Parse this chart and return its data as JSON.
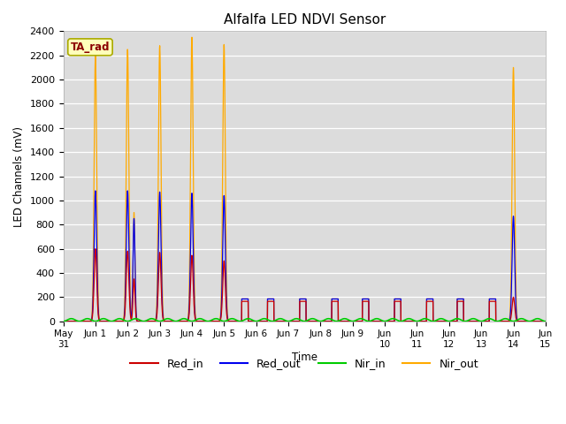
{
  "title": "Alfalfa LED NDVI Sensor",
  "ylabel": "LED Channels (mV)",
  "xlabel": "Time",
  "annotation": "TA_rad",
  "ylim": [
    0,
    2400
  ],
  "xlim": [
    0,
    15
  ],
  "background_color": "#dcdcdc",
  "colors": {
    "Red_in": "#cc0000",
    "Red_out": "#0000ee",
    "Nir_in": "#00cc00",
    "Nir_out": "#ffaa00"
  },
  "xtick_labels": [
    "May\n31",
    "Jun 1",
    "Jun 2",
    "Jun 3",
    "Jun 4",
    "Jun 5",
    "Jun 6",
    "Jun 7",
    "Jun 8",
    "Jun 9",
    "Jun\n10",
    "Jun\n11",
    "Jun\n12",
    "Jun\n13",
    "Jun\n14",
    "Jun\n15"
  ],
  "ytick_values": [
    0,
    200,
    400,
    600,
    800,
    1000,
    1200,
    1400,
    1600,
    1800,
    2000,
    2200,
    2400
  ],
  "spike_params": [
    [
      1.0,
      0.04,
      600,
      1080,
      2200
    ],
    [
      2.0,
      0.04,
      580,
      1080,
      2250
    ],
    [
      2.2,
      0.03,
      350,
      850,
      900
    ],
    [
      3.0,
      0.04,
      570,
      1070,
      2280
    ],
    [
      4.0,
      0.04,
      545,
      1060,
      2350
    ],
    [
      5.0,
      0.04,
      500,
      1040,
      2290
    ],
    [
      14.0,
      0.04,
      200,
      870,
      2100
    ]
  ],
  "small_bump_centers": [
    5.65,
    6.45,
    7.45,
    8.45,
    9.4,
    10.4,
    11.4,
    12.35,
    13.35
  ],
  "small_bump_hw": 0.1,
  "small_bump_red_in": 165,
  "small_bump_red_out": 185,
  "small_bump_nir_out": 185,
  "nir_in_amp": 22,
  "nir_in_period": 1.0,
  "nir_in_phase": 0.5
}
